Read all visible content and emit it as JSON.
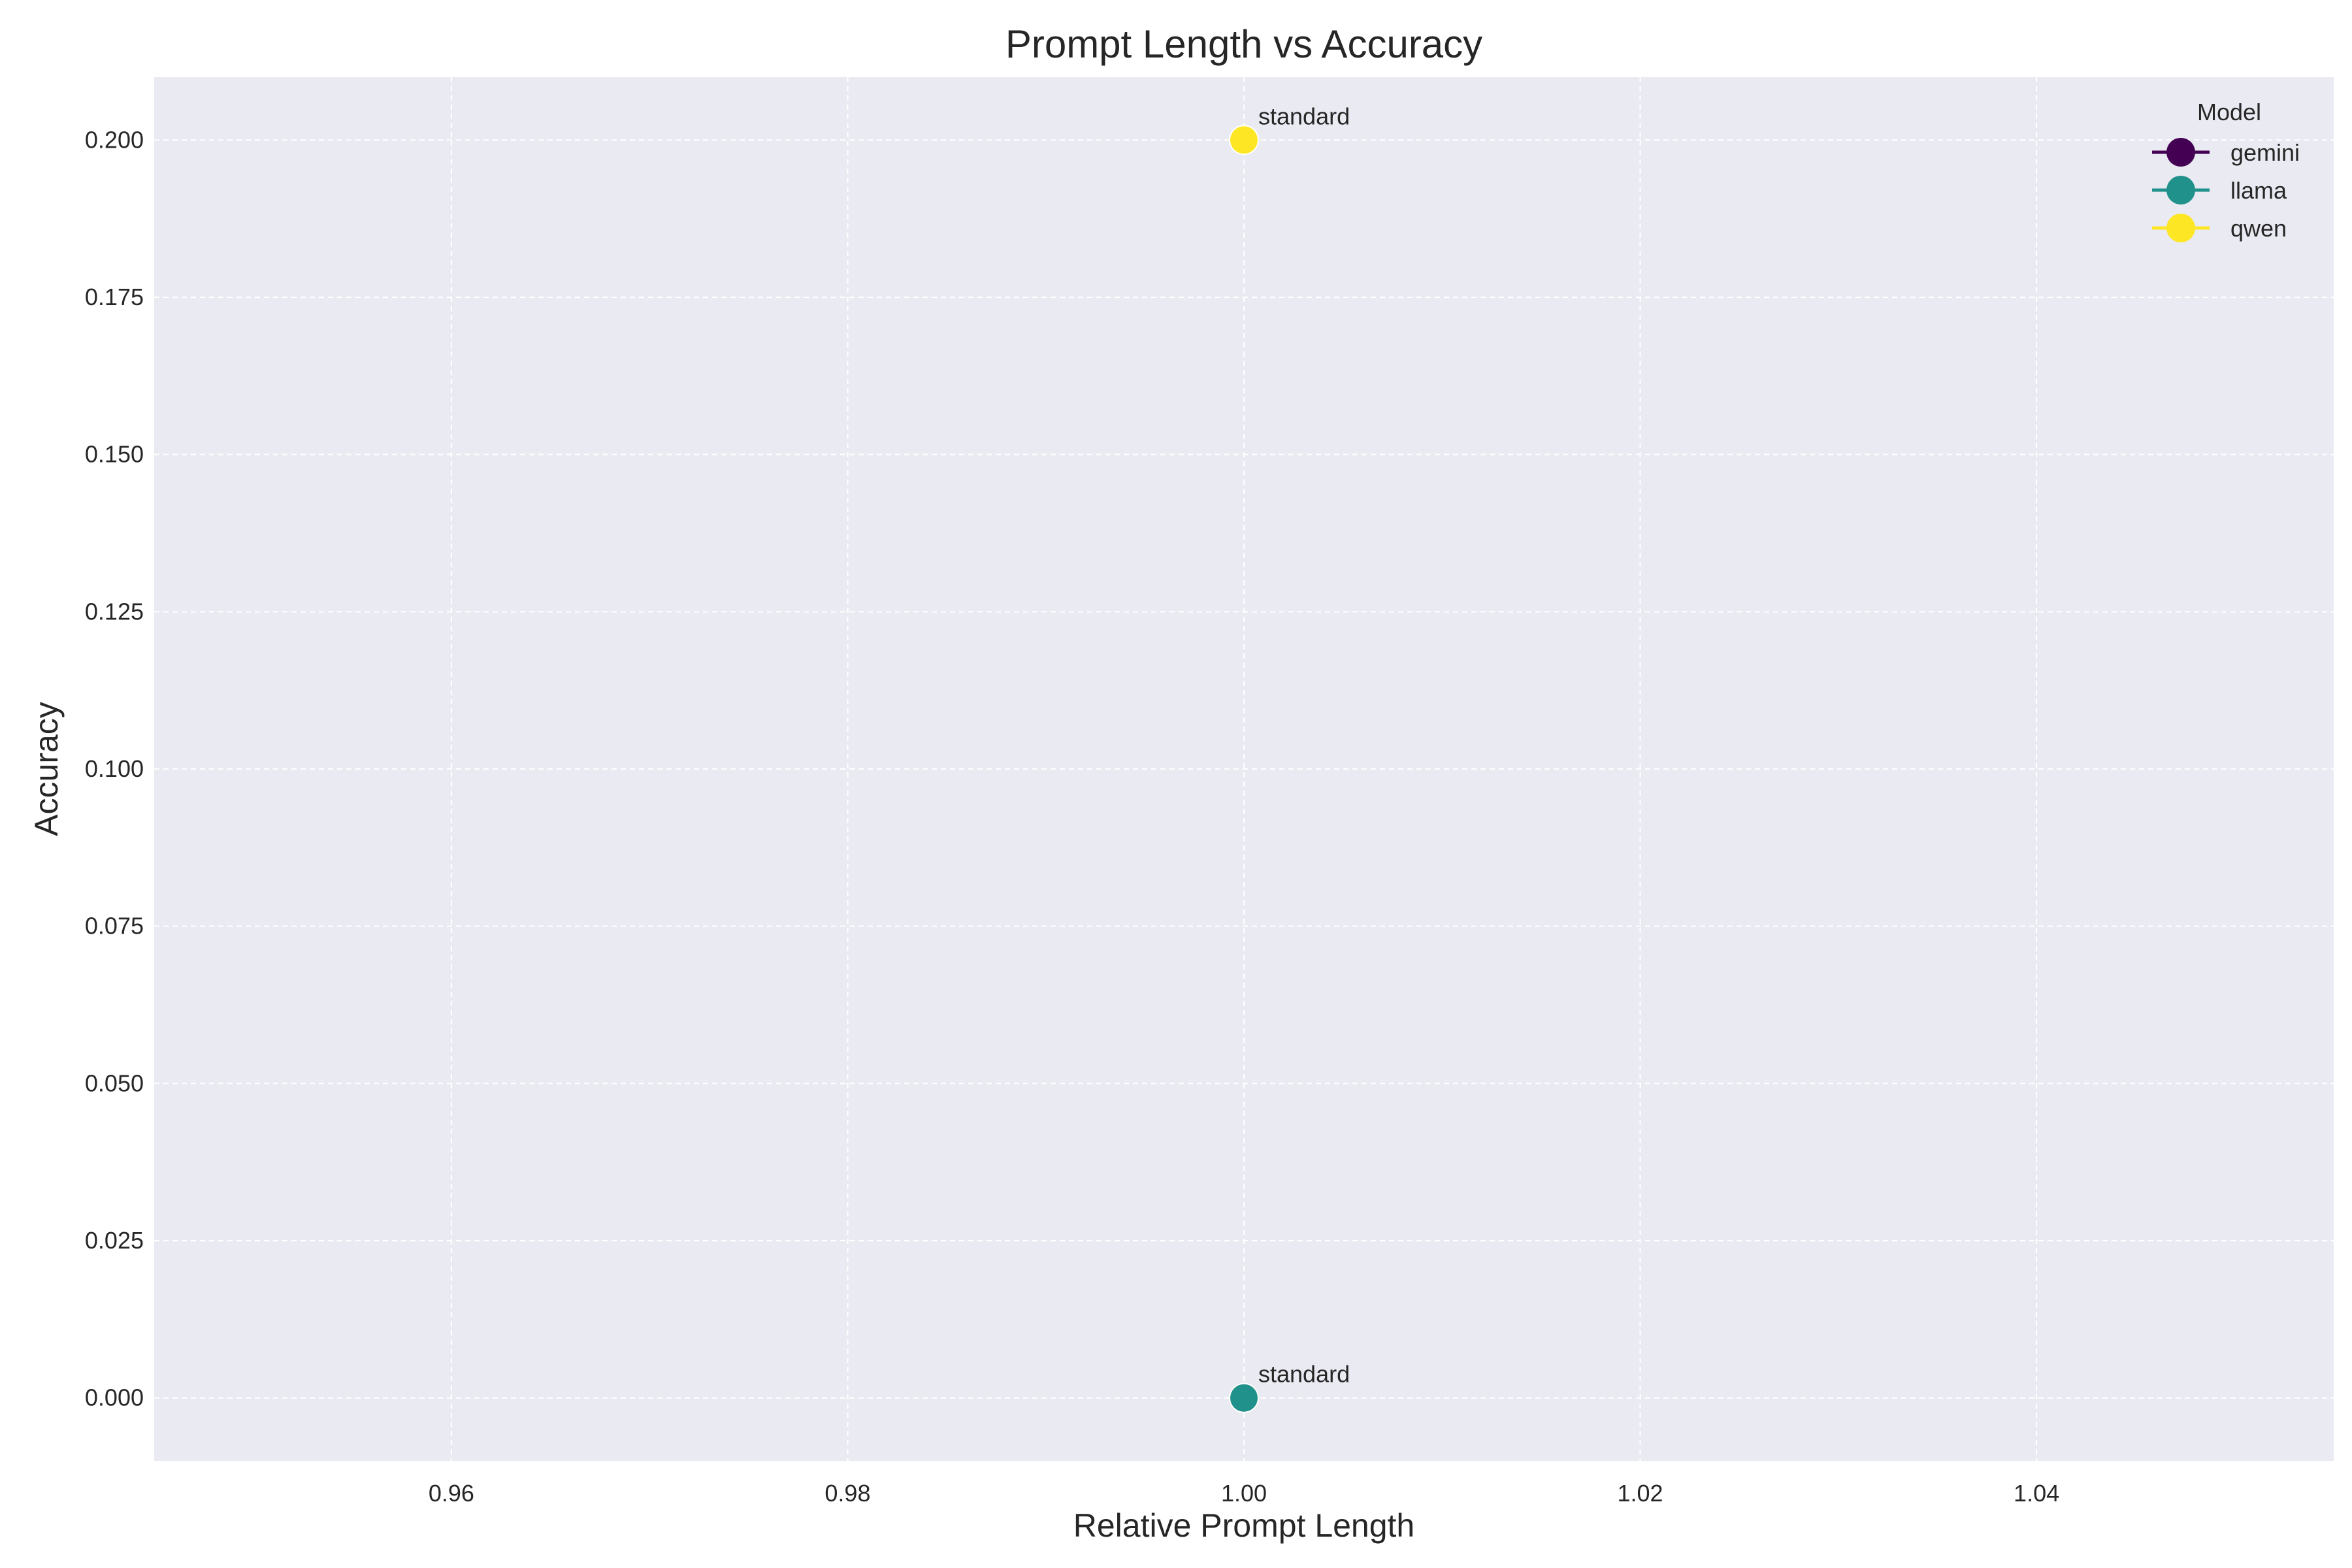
{
  "chart_data": {
    "type": "scatter",
    "title": "Prompt Length vs Accuracy",
    "xlabel": "Relative Prompt Length",
    "ylabel": "Accuracy",
    "xlim": [
      0.945,
      1.055
    ],
    "ylim": [
      -0.01,
      0.21
    ],
    "x_ticks": [
      0.96,
      0.98,
      1.0,
      1.02,
      1.04
    ],
    "x_tick_labels": [
      "0.96",
      "0.98",
      "1.00",
      "1.02",
      "1.04"
    ],
    "y_ticks": [
      0.0,
      0.025,
      0.05,
      0.075,
      0.1,
      0.125,
      0.15,
      0.175,
      0.2
    ],
    "y_tick_labels": [
      "0.000",
      "0.025",
      "0.050",
      "0.075",
      "0.100",
      "0.125",
      "0.150",
      "0.175",
      "0.200"
    ],
    "grid": true,
    "legend": {
      "title": "Model",
      "placement": "top-right",
      "entries": [
        {
          "label": "gemini",
          "color": "#440154"
        },
        {
          "label": "llama",
          "color": "#21918c"
        },
        {
          "label": "qwen",
          "color": "#fde725"
        }
      ]
    },
    "series": [
      {
        "name": "gemini",
        "color": "#440154",
        "points": []
      },
      {
        "name": "llama",
        "color": "#21918c",
        "points": [
          {
            "x": 1.0,
            "y": 0.0,
            "label": "standard"
          }
        ]
      },
      {
        "name": "qwen",
        "color": "#fde725",
        "points": [
          {
            "x": 1.0,
            "y": 0.2,
            "label": "standard"
          }
        ]
      }
    ]
  }
}
